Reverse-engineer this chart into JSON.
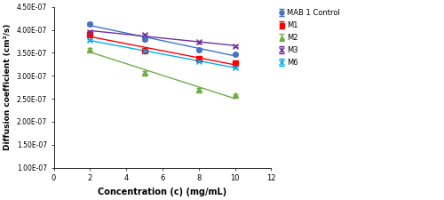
{
  "x": [
    2,
    5,
    8,
    10
  ],
  "series": {
    "MAB 1 Control": {
      "y": [
        4.13e-07,
        3.8e-07,
        3.57e-07,
        3.47e-07
      ],
      "yerr": [
        4e-09,
        4e-09,
        3e-09,
        2e-09
      ],
      "color": "#4472C4",
      "marker": "o",
      "markersize": 4
    },
    "M1": {
      "y": [
        3.9e-07,
        3.55e-07,
        3.37e-07,
        3.28e-07
      ],
      "yerr": [
        3e-09,
        3e-09,
        3e-09,
        2e-09
      ],
      "color": "#FF0000",
      "marker": "s",
      "markersize": 4
    },
    "M2": {
      "y": [
        3.57e-07,
        3.07e-07,
        2.7e-07,
        2.57e-07
      ],
      "yerr": [
        3e-09,
        3e-09,
        3e-09,
        3e-09
      ],
      "color": "#70AD47",
      "marker": "^",
      "markersize": 4
    },
    "M3": {
      "y": [
        3.96e-07,
        3.9e-07,
        3.73e-07,
        3.65e-07
      ],
      "yerr": [
        2e-09,
        2e-09,
        2e-09,
        2e-09
      ],
      "color": "#7030A0",
      "marker": "x",
      "markersize": 5
    },
    "M6": {
      "y": [
        3.77e-07,
        3.54e-07,
        3.32e-07,
        3.18e-07
      ],
      "yerr": [
        2e-09,
        2e-09,
        2e-09,
        2e-09
      ],
      "color": "#00B0F0",
      "marker": "x",
      "markersize": 5
    }
  },
  "xlabel": "Concentration (c) (mg/mL)",
  "ylabel": "Diffusion coefficient (cm²/s)",
  "xlim": [
    0,
    12
  ],
  "ylim": [
    1e-07,
    4.5e-07
  ],
  "yticks": [
    1e-07,
    1.5e-07,
    2e-07,
    2.5e-07,
    3e-07,
    3.5e-07,
    4e-07,
    4.5e-07
  ],
  "ytick_labels": [
    "1.00E-07",
    "1.50E-07",
    "2.00E-07",
    "2.50E-07",
    "3.00E-07",
    "3.50E-07",
    "4.00E-07",
    "4.50E-07"
  ],
  "xticks": [
    0,
    2,
    4,
    6,
    8,
    10,
    12
  ],
  "background_color": "#FFFFFF",
  "legend_order": [
    "MAB 1 Control",
    "M1",
    "M2",
    "M3",
    "M6"
  ]
}
